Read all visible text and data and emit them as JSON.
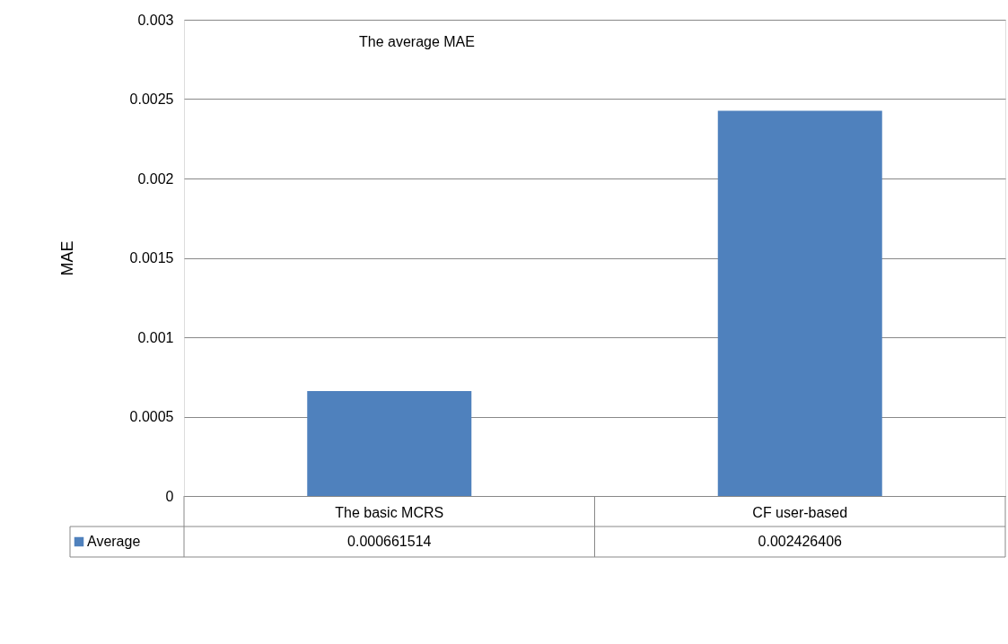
{
  "chart_data": {
    "type": "bar",
    "title": "The average MAE",
    "ylabel": "MAE",
    "categories": [
      "The basic MCRS",
      "CF user-based"
    ],
    "series": [
      {
        "name": "Average",
        "color": "#4f81bd",
        "values": [
          0.000661514,
          0.002426406
        ]
      }
    ],
    "ylim": [
      0,
      0.003
    ],
    "yticks": [
      0,
      0.0005,
      0.001,
      0.0015,
      0.002,
      0.0025,
      0.003
    ],
    "grid": "y",
    "legend": "bottom",
    "data_labels": true
  }
}
